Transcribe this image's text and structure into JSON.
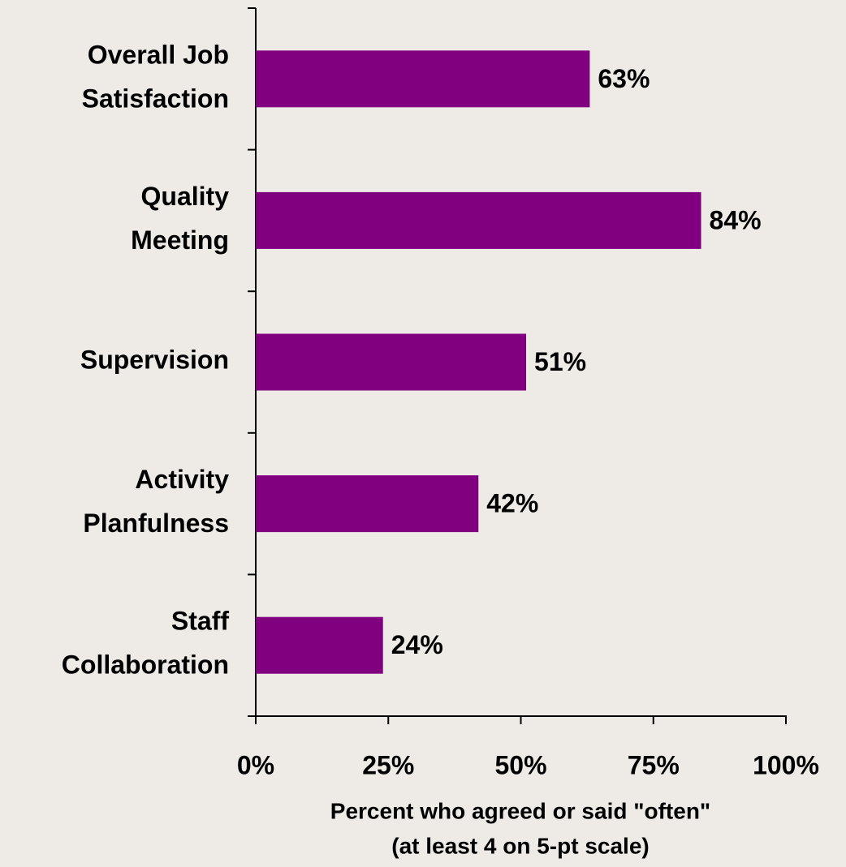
{
  "chart_data": {
    "type": "bar",
    "orientation": "horizontal",
    "categories": [
      "Overall Job\nSatisfaction",
      "Quality\nMeeting",
      "Supervision",
      "Activity\nPlanfulness",
      "Staff\nCollaboration"
    ],
    "values": [
      63,
      84,
      51,
      42,
      24
    ],
    "value_labels": [
      "63%",
      "84%",
      "51%",
      "42%",
      "24%"
    ],
    "color": "#800080",
    "xlabel": "Percent who agreed or said \"often\"\n(at least 4 on 5-pt scale)",
    "xlim": [
      0,
      100
    ],
    "xticks": [
      {
        "value": 0,
        "label": "0%"
      },
      {
        "value": 25,
        "label": "25%"
      },
      {
        "value": 50,
        "label": "50%"
      },
      {
        "value": 75,
        "label": "75%"
      },
      {
        "value": 100,
        "label": "100%"
      }
    ],
    "grid": false
  }
}
